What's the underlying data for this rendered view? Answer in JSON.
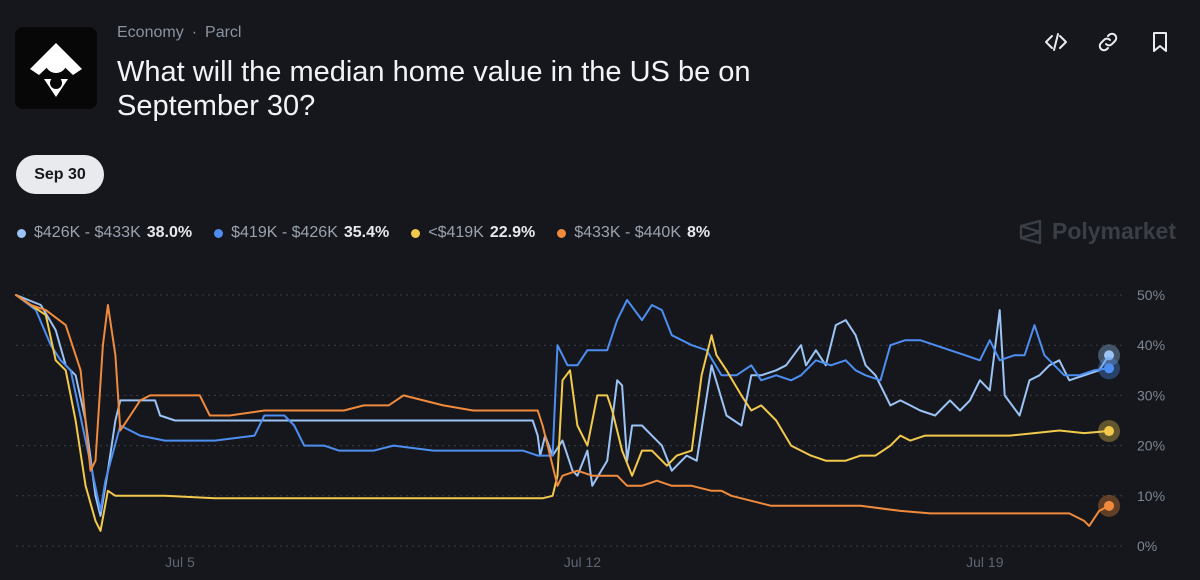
{
  "header": {
    "category": "Economy",
    "separator": "·",
    "source": "Parcl",
    "title": "What will the median home value in the US be on September 30?"
  },
  "icons": {
    "logo": "house-logo-icon",
    "embed": "code-icon",
    "link": "link-icon",
    "bookmark": "bookmark-icon"
  },
  "tabs": [
    {
      "label": "Sep 30",
      "selected": true
    }
  ],
  "legend": [
    {
      "range": "$426K - $433K",
      "pct": "38.0%",
      "color": "#9cc3f5"
    },
    {
      "range": "$419K - $426K",
      "pct": "35.4%",
      "color": "#4d8ef0"
    },
    {
      "range": "<$419K",
      "pct": "22.9%",
      "color": "#f2c94c"
    },
    {
      "range": "$433K - $440K",
      "pct": "8%",
      "color": "#f08a3c"
    }
  ],
  "watermark": "Polymarket",
  "chart_data": {
    "type": "line",
    "x_range": [
      0,
      22.1
    ],
    "ylim": [
      0,
      50
    ],
    "y_ticks": [
      0,
      10,
      20,
      30,
      40,
      50
    ],
    "y_tick_labels": [
      "0%",
      "10%",
      "20%",
      "30%",
      "40%",
      "50%"
    ],
    "x_ticks": [
      3.3,
      11.4,
      19.5
    ],
    "x_tick_labels": [
      "Jul 5",
      "Jul 12",
      "Jul 19"
    ],
    "grid": true,
    "series": [
      {
        "name": "$426K - $433K",
        "color": "#9cc3f5",
        "points": [
          [
            0,
            50
          ],
          [
            0.5,
            48
          ],
          [
            0.8,
            43
          ],
          [
            1,
            36
          ],
          [
            1.2,
            34
          ],
          [
            1.4,
            25
          ],
          [
            1.6,
            10
          ],
          [
            1.7,
            6
          ],
          [
            1.85,
            15
          ],
          [
            2,
            25
          ],
          [
            2.1,
            29
          ],
          [
            2.8,
            29
          ],
          [
            2.9,
            26
          ],
          [
            3.2,
            25
          ],
          [
            8.5,
            25
          ],
          [
            10.4,
            25
          ],
          [
            10.5,
            22
          ],
          [
            10.55,
            18
          ],
          [
            10.65,
            22
          ],
          [
            10.8,
            18
          ],
          [
            11,
            21
          ],
          [
            11.2,
            15
          ],
          [
            11.3,
            14
          ],
          [
            11.5,
            19
          ],
          [
            11.6,
            12
          ],
          [
            11.9,
            17
          ],
          [
            12.1,
            33
          ],
          [
            12.2,
            32
          ],
          [
            12.3,
            17
          ],
          [
            12.4,
            24
          ],
          [
            12.6,
            24
          ],
          [
            12.8,
            22
          ],
          [
            13,
            20
          ],
          [
            13.2,
            15
          ],
          [
            13.5,
            18
          ],
          [
            13.7,
            17
          ],
          [
            14,
            36
          ],
          [
            14.3,
            26
          ],
          [
            14.6,
            24
          ],
          [
            14.8,
            34
          ],
          [
            15,
            34
          ],
          [
            15.3,
            35
          ],
          [
            15.5,
            36
          ],
          [
            15.8,
            40
          ],
          [
            15.9,
            36
          ],
          [
            16.1,
            39
          ],
          [
            16.3,
            36
          ],
          [
            16.5,
            44
          ],
          [
            16.7,
            45
          ],
          [
            16.9,
            42
          ],
          [
            17.1,
            36
          ],
          [
            17.3,
            34
          ],
          [
            17.6,
            28
          ],
          [
            17.8,
            29
          ],
          [
            18,
            28
          ],
          [
            18.2,
            27
          ],
          [
            18.5,
            26
          ],
          [
            18.8,
            29
          ],
          [
            19,
            27
          ],
          [
            19.2,
            29
          ],
          [
            19.4,
            33
          ],
          [
            19.6,
            31
          ],
          [
            19.8,
            47
          ],
          [
            19.9,
            30
          ],
          [
            20.2,
            26
          ],
          [
            20.4,
            33
          ],
          [
            20.6,
            34
          ],
          [
            20.8,
            36
          ],
          [
            21,
            37
          ],
          [
            21.2,
            33
          ],
          [
            21.5,
            34
          ],
          [
            21.8,
            35
          ],
          [
            22,
            38
          ]
        ]
      },
      {
        "name": "$419K - $426K",
        "color": "#4d8ef0",
        "points": [
          [
            0,
            50
          ],
          [
            0.4,
            47
          ],
          [
            0.7,
            40
          ],
          [
            0.9,
            37
          ],
          [
            1.1,
            35
          ],
          [
            1.4,
            21
          ],
          [
            1.7,
            7
          ],
          [
            1.8,
            13
          ],
          [
            2.1,
            24
          ],
          [
            2.5,
            22
          ],
          [
            3,
            21
          ],
          [
            4,
            21
          ],
          [
            4.8,
            22
          ],
          [
            5,
            26
          ],
          [
            5.4,
            26
          ],
          [
            5.6,
            24
          ],
          [
            5.8,
            20
          ],
          [
            6.2,
            20
          ],
          [
            6.5,
            19
          ],
          [
            7.2,
            19
          ],
          [
            7.6,
            20
          ],
          [
            8.4,
            19
          ],
          [
            9.2,
            19
          ],
          [
            10.2,
            19
          ],
          [
            10.5,
            18
          ],
          [
            10.8,
            18
          ],
          [
            10.9,
            40
          ],
          [
            11.1,
            36
          ],
          [
            11.3,
            36
          ],
          [
            11.5,
            39
          ],
          [
            11.9,
            39
          ],
          [
            12.1,
            45
          ],
          [
            12.3,
            49
          ],
          [
            12.6,
            45
          ],
          [
            12.8,
            48
          ],
          [
            13,
            47
          ],
          [
            13.2,
            42
          ],
          [
            13.6,
            40
          ],
          [
            13.9,
            39
          ],
          [
            14.2,
            34
          ],
          [
            14.5,
            34
          ],
          [
            14.8,
            36
          ],
          [
            15,
            33
          ],
          [
            15.3,
            34
          ],
          [
            15.6,
            33
          ],
          [
            15.8,
            34
          ],
          [
            16.1,
            37
          ],
          [
            16.4,
            36
          ],
          [
            16.7,
            37
          ],
          [
            16.9,
            35
          ],
          [
            17.1,
            34
          ],
          [
            17.4,
            33
          ],
          [
            17.6,
            40
          ],
          [
            17.9,
            41
          ],
          [
            18.2,
            41
          ],
          [
            18.5,
            40
          ],
          [
            18.8,
            39
          ],
          [
            19.1,
            38
          ],
          [
            19.4,
            37
          ],
          [
            19.6,
            41
          ],
          [
            19.8,
            37
          ],
          [
            20.1,
            38
          ],
          [
            20.3,
            38
          ],
          [
            20.5,
            44
          ],
          [
            20.7,
            38
          ],
          [
            20.9,
            36
          ],
          [
            21.1,
            34
          ],
          [
            21.4,
            34
          ],
          [
            21.7,
            35
          ],
          [
            22,
            35.4
          ]
        ]
      },
      {
        "name": "<$419K",
        "color": "#f2c94c",
        "points": [
          [
            0,
            50
          ],
          [
            0.3,
            48
          ],
          [
            0.6,
            46
          ],
          [
            0.8,
            37
          ],
          [
            1,
            35
          ],
          [
            1.2,
            25
          ],
          [
            1.4,
            12
          ],
          [
            1.6,
            5
          ],
          [
            1.7,
            3
          ],
          [
            1.85,
            11
          ],
          [
            2,
            10
          ],
          [
            2.5,
            10
          ],
          [
            3,
            10
          ],
          [
            4,
            9.5
          ],
          [
            10.4,
            9.5
          ],
          [
            10.6,
            9.5
          ],
          [
            10.8,
            10
          ],
          [
            10.9,
            14
          ],
          [
            11,
            33
          ],
          [
            11.15,
            35
          ],
          [
            11.3,
            24
          ],
          [
            11.5,
            20
          ],
          [
            11.7,
            30
          ],
          [
            11.9,
            30
          ],
          [
            12,
            27
          ],
          [
            12.2,
            19
          ],
          [
            12.4,
            14
          ],
          [
            12.6,
            19
          ],
          [
            12.8,
            19
          ],
          [
            13.1,
            16
          ],
          [
            13.3,
            18
          ],
          [
            13.6,
            19
          ],
          [
            13.8,
            34
          ],
          [
            14,
            42
          ],
          [
            14.1,
            38
          ],
          [
            14.3,
            35
          ],
          [
            14.6,
            30
          ],
          [
            14.8,
            27
          ],
          [
            15,
            28
          ],
          [
            15.3,
            25
          ],
          [
            15.6,
            20
          ],
          [
            16,
            18
          ],
          [
            16.3,
            17
          ],
          [
            16.7,
            17
          ],
          [
            17,
            18
          ],
          [
            17.3,
            18
          ],
          [
            17.6,
            20
          ],
          [
            17.8,
            22
          ],
          [
            18,
            21
          ],
          [
            18.3,
            22
          ],
          [
            18.7,
            22
          ],
          [
            19,
            22
          ],
          [
            19.5,
            22
          ],
          [
            20,
            22
          ],
          [
            20.5,
            22.5
          ],
          [
            21,
            23
          ],
          [
            21.5,
            22.5
          ],
          [
            22,
            22.9
          ]
        ]
      },
      {
        "name": "$433K - $440K",
        "color": "#f08a3c",
        "points": [
          [
            0,
            50
          ],
          [
            0.3,
            48
          ],
          [
            0.6,
            47
          ],
          [
            1,
            44
          ],
          [
            1.3,
            35
          ],
          [
            1.5,
            15
          ],
          [
            1.6,
            17
          ],
          [
            1.75,
            40
          ],
          [
            1.85,
            48
          ],
          [
            2,
            38
          ],
          [
            2.1,
            23
          ],
          [
            2.3,
            26
          ],
          [
            2.5,
            29
          ],
          [
            2.7,
            30
          ],
          [
            3.7,
            30
          ],
          [
            3.9,
            26
          ],
          [
            4.3,
            26
          ],
          [
            5,
            27
          ],
          [
            6,
            27
          ],
          [
            6.6,
            27
          ],
          [
            7,
            28
          ],
          [
            7.5,
            28
          ],
          [
            7.8,
            30
          ],
          [
            8.2,
            29
          ],
          [
            8.6,
            28
          ],
          [
            9.2,
            27
          ],
          [
            10,
            27
          ],
          [
            10.5,
            27
          ],
          [
            10.6,
            24
          ],
          [
            10.8,
            16
          ],
          [
            10.9,
            12
          ],
          [
            11,
            14
          ],
          [
            11.3,
            15
          ],
          [
            11.6,
            14
          ],
          [
            12.1,
            14
          ],
          [
            12.3,
            12
          ],
          [
            12.6,
            12
          ],
          [
            12.9,
            13
          ],
          [
            13.2,
            12
          ],
          [
            13.6,
            12
          ],
          [
            14,
            11
          ],
          [
            14.2,
            11
          ],
          [
            14.4,
            10
          ],
          [
            14.8,
            9
          ],
          [
            15.2,
            8
          ],
          [
            15.6,
            8
          ],
          [
            16.2,
            8
          ],
          [
            17,
            8
          ],
          [
            17.8,
            7
          ],
          [
            18.4,
            6.5
          ],
          [
            19,
            6.5
          ],
          [
            19.5,
            6.5
          ],
          [
            20,
            6.5
          ],
          [
            20.6,
            6.5
          ],
          [
            21.2,
            6.5
          ],
          [
            21.5,
            5
          ],
          [
            21.6,
            4
          ],
          [
            21.8,
            7
          ],
          [
            22,
            8
          ]
        ]
      }
    ]
  }
}
